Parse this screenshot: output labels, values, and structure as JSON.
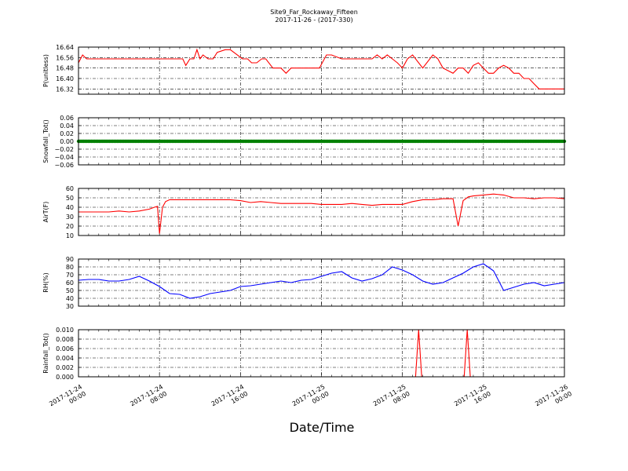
{
  "title": {
    "line1": "Site9_Far_Rockaway_Fifteen",
    "line2": "2017-11-26 - (2017-330)"
  },
  "xlabel": "Date/Time",
  "x_ticks": [
    [
      "2017-11-24",
      "00:00"
    ],
    [
      "2017-11-24",
      "08:00"
    ],
    [
      "2017-11-24",
      "16:00"
    ],
    [
      "2017-11-25",
      "00:00"
    ],
    [
      "2017-11-25",
      "08:00"
    ],
    [
      "2017-11-25",
      "16:00"
    ],
    [
      "2017-11-26",
      "00:00"
    ]
  ],
  "colors": {
    "red": "#ff0000",
    "green": "#008000",
    "blue": "#0000ff"
  },
  "chart_data": [
    {
      "type": "line",
      "ylabel": "P(unitless)",
      "ylim": [
        16.28,
        16.64
      ],
      "yticks": [
        "16.32",
        "16.40",
        "16.48",
        "16.56",
        "16.64"
      ],
      "ytick_values": [
        16.32,
        16.4,
        16.48,
        16.56,
        16.64
      ],
      "color": "#ff0000",
      "marker": false,
      "xlim": [
        0,
        48
      ],
      "grid": true,
      "series": [
        {
          "x": [
            0,
            0.4,
            0.8,
            1.5,
            3,
            5,
            7,
            9,
            10.3,
            10.6,
            11,
            11.4,
            11.7,
            12,
            12.3,
            12.8,
            13.3,
            13.7,
            14.5,
            15,
            16.2,
            16.7,
            17.1,
            17.6,
            18.1,
            18.5,
            19.2,
            19.6,
            20,
            20.5,
            21,
            22.5,
            23.2,
            23.8,
            24.5,
            25,
            26,
            28,
            28.5,
            29,
            29.5,
            30,
            30.5,
            31,
            31.5,
            32,
            32.5,
            33,
            34,
            35,
            35.5,
            36,
            37,
            37.5,
            38,
            38.5,
            39,
            39.5,
            40,
            40.5,
            41,
            41.5,
            42,
            42.5,
            43,
            43.5,
            44,
            44.5,
            45,
            45.5,
            46,
            46.5,
            47,
            47.5,
            48
          ],
          "y": [
            16.52,
            16.58,
            16.55,
            16.55,
            16.55,
            16.55,
            16.55,
            16.55,
            16.55,
            16.5,
            16.55,
            16.55,
            16.62,
            16.55,
            16.58,
            16.55,
            16.55,
            16.6,
            16.62,
            16.62,
            16.55,
            16.55,
            16.52,
            16.52,
            16.55,
            16.55,
            16.48,
            16.48,
            16.48,
            16.44,
            16.48,
            16.48,
            16.48,
            16.48,
            16.58,
            16.58,
            16.55,
            16.55,
            16.55,
            16.55,
            16.58,
            16.55,
            16.58,
            16.55,
            16.52,
            16.48,
            16.55,
            16.58,
            16.48,
            16.58,
            16.55,
            16.48,
            16.44,
            16.48,
            16.48,
            16.44,
            16.5,
            16.52,
            16.48,
            16.44,
            16.44,
            16.48,
            16.5,
            16.48,
            16.44,
            16.44,
            16.4,
            16.4,
            16.36,
            16.32,
            16.32,
            16.32,
            16.32,
            16.32,
            16.32
          ]
        }
      ]
    },
    {
      "type": "scatter",
      "ylabel": "Snowfall_Tot()",
      "ylim": [
        -0.06,
        0.06
      ],
      "yticks": [
        "0.06",
        "0.04",
        "0.02",
        "0.00",
        "−0.02",
        "−0.04",
        "−0.06"
      ],
      "ytick_values": [
        0.06,
        0.04,
        0.02,
        0.0,
        -0.02,
        -0.04,
        -0.06
      ],
      "color": "#008000",
      "marker": true,
      "xlim": [
        0,
        48
      ],
      "grid": true,
      "series": [
        {
          "x": [
            0,
            48
          ],
          "y": [
            0.0,
            0.0
          ],
          "dense": true
        }
      ]
    },
    {
      "type": "line",
      "ylabel": "AirT(F)",
      "ylim": [
        10,
        60
      ],
      "yticks": [
        "60",
        "50",
        "40",
        "30",
        "20",
        "10"
      ],
      "ytick_values": [
        60,
        50,
        40,
        30,
        20,
        10
      ],
      "color": "#ff0000",
      "marker": false,
      "xlim": [
        0,
        48
      ],
      "grid": true,
      "series": [
        {
          "x": [
            0,
            1,
            2,
            3,
            4,
            5,
            6,
            7,
            7.5,
            7.8,
            8,
            8.3,
            8.6,
            9,
            10,
            11,
            12,
            13,
            14,
            15,
            16,
            17,
            18,
            19,
            20,
            21,
            22,
            23,
            24,
            25,
            26,
            27,
            28,
            29,
            30,
            31,
            32,
            33,
            34,
            35,
            36,
            37,
            37.5,
            38,
            38.5,
            39,
            40,
            41,
            42,
            43,
            44,
            45,
            46,
            47,
            48
          ],
          "y": [
            35,
            35,
            35,
            35,
            36,
            35,
            36,
            38,
            40,
            41,
            12,
            40,
            46,
            48,
            48,
            48,
            48,
            48,
            48,
            48,
            47,
            45,
            46,
            45,
            44,
            44,
            44,
            44,
            43,
            43,
            43,
            44,
            43,
            42,
            43,
            43,
            43,
            46,
            48,
            48,
            49,
            49,
            20,
            47,
            51,
            52,
            53,
            54,
            53,
            50,
            50,
            49,
            50,
            50,
            49
          ]
        }
      ]
    },
    {
      "type": "line",
      "ylabel": "RH(%)",
      "ylim": [
        30,
        90
      ],
      "yticks": [
        "90",
        "80",
        "70",
        "60",
        "50",
        "40",
        "30"
      ],
      "ytick_values": [
        90,
        80,
        70,
        60,
        50,
        40,
        30
      ],
      "color": "#0000ff",
      "marker": false,
      "xlim": [
        0,
        48
      ],
      "grid": true,
      "series": [
        {
          "x": [
            0,
            1,
            2,
            3,
            4,
            5,
            6,
            7,
            8,
            9,
            10,
            11,
            12,
            13,
            14,
            15,
            16,
            17,
            18,
            19,
            20,
            21,
            22,
            23,
            24,
            25,
            26,
            27,
            28,
            29,
            30,
            31,
            32,
            33,
            34,
            35,
            36,
            37,
            38,
            39,
            40,
            41,
            42,
            43,
            44,
            45,
            46,
            47,
            48
          ],
          "y": [
            63,
            64,
            64,
            62,
            62,
            64,
            68,
            62,
            55,
            46,
            45,
            40,
            42,
            46,
            48,
            50,
            55,
            56,
            58,
            60,
            62,
            60,
            63,
            64,
            68,
            72,
            74,
            66,
            62,
            65,
            70,
            80,
            76,
            70,
            62,
            58,
            60,
            66,
            72,
            80,
            84,
            75,
            50,
            54,
            58,
            60,
            56,
            58,
            60
          ]
        }
      ]
    },
    {
      "type": "line",
      "ylabel": "Rainfall_Tot()",
      "ylim": [
        0.0,
        0.01
      ],
      "yticks": [
        "0.010",
        "0.008",
        "0.006",
        "0.004",
        "0.002",
        "0.000"
      ],
      "ytick_values": [
        0.01,
        0.008,
        0.006,
        0.004,
        0.002,
        0.0
      ],
      "color": "#ff0000",
      "marker": false,
      "xlim": [
        0,
        48
      ],
      "grid": true,
      "series": [
        {
          "x": [
            0,
            33.3,
            33.6,
            33.9,
            38.1,
            38.4,
            38.7,
            48
          ],
          "y": [
            0,
            0,
            0.01,
            0,
            0,
            0.01,
            0,
            0
          ]
        }
      ]
    }
  ]
}
